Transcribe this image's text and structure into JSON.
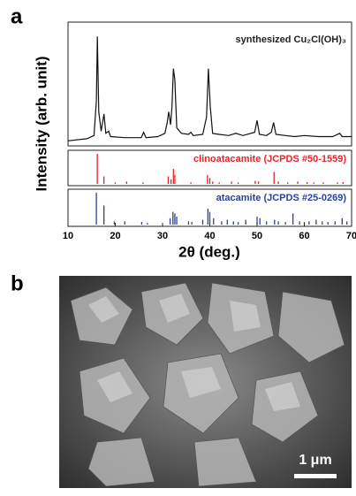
{
  "panel_labels": [
    "a",
    "b"
  ],
  "y_label": "Intensity (arb. unit)",
  "x_label": "2θ (deg.)",
  "chart_data": [
    {
      "type": "line",
      "annotation": "synthesized Cu₂Cl(OH)₃",
      "color": "#111111",
      "xlim": [
        10,
        70
      ],
      "ylim": [
        0,
        110
      ],
      "x": [
        10,
        14,
        15.5,
        16.0,
        16.2,
        16.5,
        17.0,
        17.6,
        18.0,
        18.6,
        19.0,
        22,
        25.5,
        26,
        26.5,
        29,
        30.5,
        31.0,
        31.3,
        31.7,
        32.0,
        32.3,
        32.6,
        33.0,
        34,
        35.5,
        36,
        36.5,
        38.5,
        39.3,
        39.7,
        40.1,
        40.6,
        42,
        44,
        45.5,
        47,
        49.5,
        50.0,
        50.5,
        52,
        53.0,
        53.5,
        54.0,
        56,
        58,
        60,
        63,
        66,
        67.5,
        68,
        70
      ],
      "values": [
        3,
        5,
        8,
        40,
        100,
        30,
        12,
        28,
        10,
        12,
        7,
        6,
        6,
        11,
        6,
        7,
        10,
        20,
        30,
        18,
        35,
        70,
        60,
        15,
        10,
        9,
        11,
        8,
        9,
        25,
        70,
        35,
        10,
        9,
        8,
        10,
        8,
        11,
        22,
        9,
        8,
        11,
        20,
        9,
        8,
        7,
        8,
        7,
        7,
        10,
        7,
        7
      ]
    },
    {
      "type": "stem",
      "annotation": "clinoatacamite (JCPDS #50-1559)",
      "color": "#e8242a",
      "xlim": [
        10,
        70
      ],
      "ylim": [
        0,
        100
      ],
      "x": [
        16.2,
        17.6,
        20,
        22.4,
        25.9,
        31.2,
        31.8,
        32.3,
        32.6,
        36,
        39.5,
        40,
        40.6,
        42,
        44.6,
        46,
        49.6,
        50.3,
        53.6,
        54.5,
        56.5,
        58.6,
        60.6,
        62,
        64,
        67,
        68.2
      ],
      "values": [
        100,
        25,
        5,
        8,
        5,
        25,
        15,
        50,
        30,
        5,
        30,
        20,
        8,
        5,
        8,
        5,
        10,
        8,
        40,
        8,
        5,
        8,
        6,
        5,
        5,
        5,
        6
      ]
    },
    {
      "type": "stem",
      "annotation": "atacamite (JCPDS #25-0269)",
      "color": "#2b3fa8",
      "xlim": [
        10,
        70
      ],
      "ylim": [
        0,
        100
      ],
      "xticks": [
        10,
        20,
        30,
        40,
        50,
        60,
        70
      ],
      "x": [
        16.0,
        17.6,
        19.8,
        22,
        25.6,
        26.8,
        31.6,
        32.2,
        32.6,
        33,
        35.5,
        36.2,
        38.5,
        39.6,
        40,
        40.8,
        42.5,
        43.7,
        45,
        46,
        47.6,
        50,
        50.6,
        52,
        53.7,
        54.5,
        56,
        57.6,
        59,
        60,
        61,
        62.5,
        63.8,
        65,
        66.5,
        68,
        69
      ],
      "values": [
        100,
        60,
        10,
        10,
        8,
        5,
        20,
        40,
        35,
        25,
        10,
        8,
        15,
        50,
        40,
        20,
        10,
        15,
        10,
        8,
        15,
        25,
        20,
        10,
        15,
        10,
        8,
        35,
        10,
        8,
        10,
        15,
        10,
        8,
        10,
        20,
        10
      ]
    }
  ],
  "image": {
    "scale_bar": "1 μm"
  }
}
